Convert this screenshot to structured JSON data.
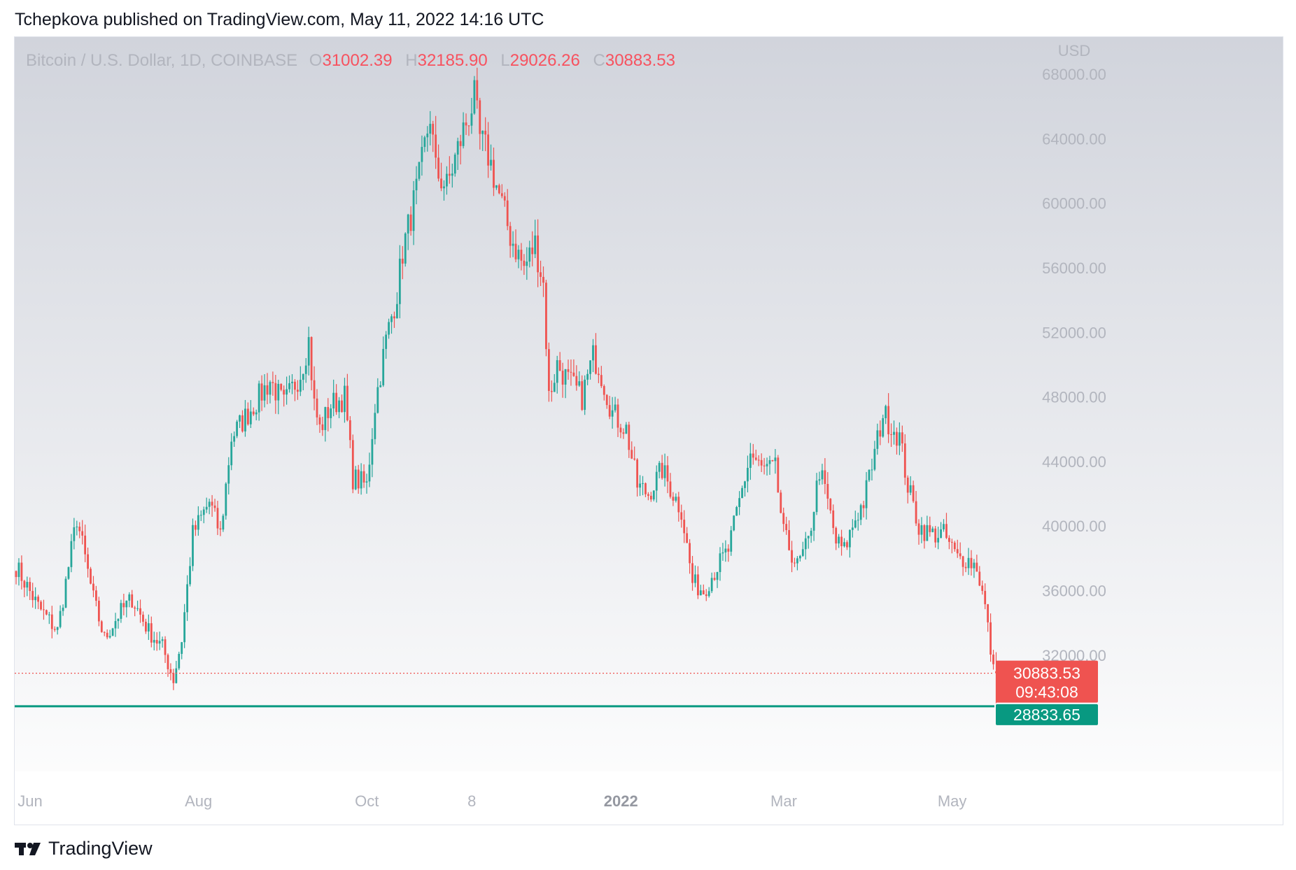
{
  "header": {
    "published": "Tchepkova published on TradingView.com, May 11, 2022 14:16 UTC"
  },
  "legend": {
    "symbol": "Bitcoin / U.S. Dollar, 1D, COINBASE",
    "o_key": "O",
    "o_val": "31002.39",
    "h_key": "H",
    "h_val": "32185.90",
    "l_key": "L",
    "l_val": "29026.26",
    "c_key": "C",
    "c_val": "30883.53"
  },
  "footer": {
    "brand": "TradingView",
    "logo_icon": "tradingview-logo-icon"
  },
  "colors": {
    "up": "#26a69a",
    "down": "#ef5350",
    "support": "#089981",
    "axis_text": "#b2b5be",
    "price_dotted": "#ef5350"
  },
  "chart_data": {
    "type": "candlestick",
    "currency": "USD",
    "y_ticks": [
      32000,
      36000,
      40000,
      44000,
      48000,
      52000,
      56000,
      60000,
      64000,
      68000
    ],
    "y_tick_labels": [
      "32000.00",
      "36000.00",
      "40000.00",
      "44000.00",
      "48000.00",
      "52000.00",
      "56000.00",
      "60000.00",
      "64000.00",
      "68000.00"
    ],
    "ylim": [
      24800,
      70300
    ],
    "x_tick_labels": [
      {
        "label": "Jun",
        "index": 0,
        "bold": false
      },
      {
        "label": "Aug",
        "index": 61,
        "bold": false
      },
      {
        "label": "Oct",
        "index": 122,
        "bold": false
      },
      {
        "label": "8",
        "index": 160,
        "bold": false
      },
      {
        "label": "2022",
        "index": 214,
        "bold": true
      },
      {
        "label": "Mar",
        "index": 273,
        "bold": false
      },
      {
        "label": "May",
        "index": 334,
        "bold": false
      }
    ],
    "price_line": {
      "value": 30883.53,
      "label": "30883.53",
      "countdown": "09:43:08"
    },
    "support_line": {
      "value": 28833.65,
      "label": "28833.65"
    },
    "keypoints": [
      [
        0,
        37500
      ],
      [
        8,
        35000
      ],
      [
        15,
        33500
      ],
      [
        22,
        40500
      ],
      [
        28,
        35500
      ],
      [
        32,
        33000
      ],
      [
        37,
        34500
      ],
      [
        42,
        35500
      ],
      [
        48,
        33500
      ],
      [
        53,
        32500
      ],
      [
        57,
        30500
      ],
      [
        60,
        33000
      ],
      [
        64,
        39500
      ],
      [
        70,
        41500
      ],
      [
        74,
        39500
      ],
      [
        78,
        45500
      ],
      [
        86,
        47500
      ],
      [
        92,
        49000
      ],
      [
        97,
        47500
      ],
      [
        103,
        49500
      ],
      [
        106,
        51500
      ],
      [
        108,
        47500
      ],
      [
        110,
        46000
      ],
      [
        114,
        47500
      ],
      [
        119,
        48000
      ],
      [
        122,
        43000
      ],
      [
        127,
        42500
      ],
      [
        130,
        47500
      ],
      [
        134,
        51500
      ],
      [
        138,
        54500
      ],
      [
        140,
        57000
      ],
      [
        146,
        61500
      ],
      [
        150,
        65500
      ],
      [
        152,
        62000
      ],
      [
        156,
        61000
      ],
      [
        162,
        64500
      ],
      [
        166,
        66500
      ],
      [
        168,
        64000
      ],
      [
        171,
        63000
      ],
      [
        175,
        60500
      ],
      [
        179,
        58000
      ],
      [
        184,
        56000
      ],
      [
        188,
        57500
      ],
      [
        191,
        55000
      ],
      [
        193,
        48000
      ],
      [
        196,
        50000
      ],
      [
        200,
        49000
      ],
      [
        205,
        48000
      ],
      [
        209,
        50500
      ],
      [
        211,
        50000
      ],
      [
        216,
        47000
      ],
      [
        221,
        46000
      ],
      [
        225,
        42500
      ],
      [
        229,
        42000
      ],
      [
        234,
        43500
      ],
      [
        238,
        42000
      ],
      [
        241,
        41000
      ],
      [
        245,
        36500
      ],
      [
        249,
        36000
      ],
      [
        254,
        37500
      ],
      [
        258,
        38500
      ],
      [
        262,
        41500
      ],
      [
        266,
        44500
      ],
      [
        270,
        43500
      ],
      [
        275,
        43500
      ],
      [
        278,
        39500
      ],
      [
        283,
        37500
      ],
      [
        287,
        39000
      ],
      [
        291,
        43500
      ],
      [
        294,
        41500
      ],
      [
        297,
        39000
      ],
      [
        300,
        38500
      ],
      [
        304,
        40500
      ],
      [
        307,
        41500
      ],
      [
        311,
        44500
      ],
      [
        314,
        47000
      ],
      [
        318,
        46000
      ],
      [
        320,
        45500
      ],
      [
        323,
        42500
      ],
      [
        327,
        40000
      ],
      [
        331,
        39500
      ],
      [
        336,
        39500
      ],
      [
        341,
        38000
      ],
      [
        344,
        38000
      ],
      [
        348,
        37500
      ],
      [
        351,
        35000
      ],
      [
        354,
        31000
      ],
      [
        355,
        30883.53
      ]
    ]
  }
}
